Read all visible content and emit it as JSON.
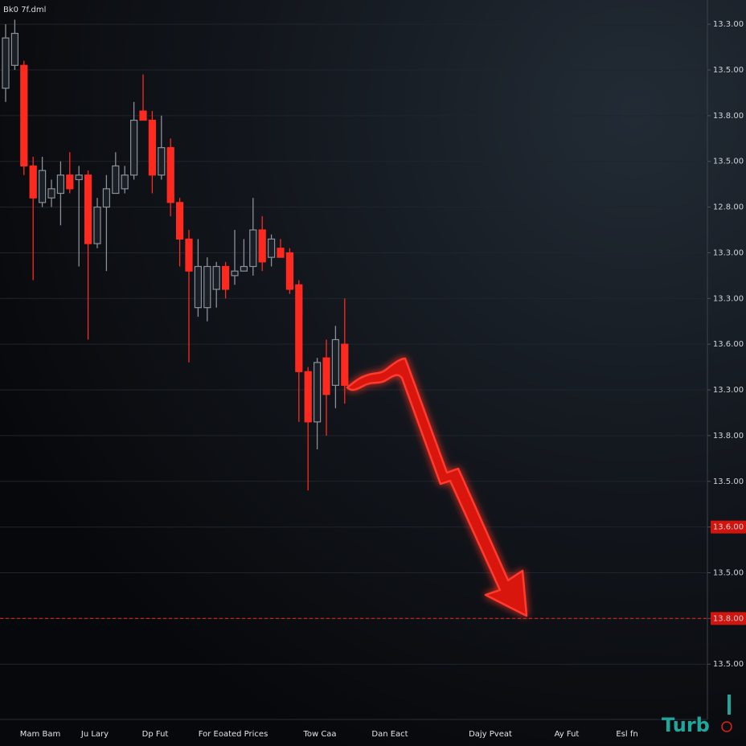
{
  "chart_data": {
    "type": "candlestick",
    "title": "Bk0 7f.dml",
    "logo": "Turb",
    "ylim": [
      -1.21,
      14.53
    ],
    "yticks": [
      {
        "value": 14,
        "label": "13.3.00"
      },
      {
        "value": 13,
        "label": "13.5.00"
      },
      {
        "value": 12,
        "label": "13.8.00"
      },
      {
        "value": 11,
        "label": "13.5.00"
      },
      {
        "value": 10,
        "label": "12.8.00"
      },
      {
        "value": 9,
        "label": "13.3.00"
      },
      {
        "value": 8,
        "label": "13.3.00"
      },
      {
        "value": 7,
        "label": "13.6.00"
      },
      {
        "value": 6,
        "label": "13.3.00"
      },
      {
        "value": 5,
        "label": "13.8.00"
      },
      {
        "value": 4,
        "label": "13.5.00"
      },
      {
        "value": 3,
        "label": "13.6.00"
      },
      {
        "value": 2,
        "label": "13.5.00"
      },
      {
        "value": 1,
        "label": "13.8.00"
      },
      {
        "value": 0,
        "label": "13.5.00"
      }
    ],
    "highlight_ticks": [
      3,
      1
    ],
    "hlines": [
      {
        "value": 1,
        "color": "#e0201c",
        "style": "dashed"
      }
    ],
    "grid": true,
    "up_color": "#8a9099",
    "down_color": "#ff2a1f",
    "x_labels": [
      "Mam Bam",
      "Ju Lary",
      "Dp Fut",
      "For Eoated Prices",
      "Tow Caa",
      "Dan Eact",
      "Dajy Pveat",
      "Ay Fut",
      "Esl fn"
    ],
    "candles": [
      {
        "open": 12.6,
        "high": 14.0,
        "low": 12.3,
        "close": 13.7
      },
      {
        "open": 13.1,
        "high": 14.1,
        "low": 13.0,
        "close": 13.8
      },
      {
        "open": 13.1,
        "high": 13.2,
        "low": 10.7,
        "close": 10.9
      },
      {
        "open": 10.9,
        "high": 11.1,
        "low": 8.4,
        "close": 10.2
      },
      {
        "open": 10.1,
        "high": 11.1,
        "low": 10.0,
        "close": 10.8
      },
      {
        "open": 10.2,
        "high": 10.6,
        "low": 10.0,
        "close": 10.4
      },
      {
        "open": 10.3,
        "high": 11.0,
        "low": 9.6,
        "close": 10.7
      },
      {
        "open": 10.7,
        "high": 11.2,
        "low": 10.3,
        "close": 10.4
      },
      {
        "open": 10.6,
        "high": 10.9,
        "low": 8.7,
        "close": 10.7
      },
      {
        "open": 10.7,
        "high": 10.8,
        "low": 7.1,
        "close": 9.2
      },
      {
        "open": 9.2,
        "high": 10.2,
        "low": 9.1,
        "close": 10.0
      },
      {
        "open": 10.0,
        "high": 10.7,
        "low": 8.6,
        "close": 10.4
      },
      {
        "open": 10.3,
        "high": 11.2,
        "low": 10.3,
        "close": 10.9
      },
      {
        "open": 10.4,
        "high": 10.9,
        "low": 10.3,
        "close": 10.7
      },
      {
        "open": 10.7,
        "high": 12.3,
        "low": 10.6,
        "close": 11.9
      },
      {
        "open": 12.1,
        "high": 12.9,
        "low": 11.9,
        "close": 11.9
      },
      {
        "open": 11.9,
        "high": 12.1,
        "low": 10.3,
        "close": 10.7
      },
      {
        "open": 10.7,
        "high": 12.0,
        "low": 10.6,
        "close": 11.3
      },
      {
        "open": 11.3,
        "high": 11.5,
        "low": 9.8,
        "close": 10.1
      },
      {
        "open": 10.1,
        "high": 10.2,
        "low": 8.7,
        "close": 9.3
      },
      {
        "open": 9.3,
        "high": 9.5,
        "low": 6.6,
        "close": 8.6
      },
      {
        "open": 7.8,
        "high": 9.3,
        "low": 7.6,
        "close": 8.7
      },
      {
        "open": 7.8,
        "high": 8.9,
        "low": 7.5,
        "close": 8.7
      },
      {
        "open": 8.2,
        "high": 8.8,
        "low": 7.8,
        "close": 8.7
      },
      {
        "open": 8.7,
        "high": 8.8,
        "low": 8.0,
        "close": 8.2
      },
      {
        "open": 8.5,
        "high": 9.5,
        "low": 8.3,
        "close": 8.6
      },
      {
        "open": 8.6,
        "high": 9.3,
        "low": 8.6,
        "close": 8.7
      },
      {
        "open": 8.7,
        "high": 10.2,
        "low": 8.5,
        "close": 9.5
      },
      {
        "open": 9.5,
        "high": 9.8,
        "low": 8.6,
        "close": 8.8
      },
      {
        "open": 8.9,
        "high": 9.4,
        "low": 8.7,
        "close": 9.3
      },
      {
        "open": 9.1,
        "high": 9.3,
        "low": 8.9,
        "close": 8.9
      },
      {
        "open": 9.0,
        "high": 9.1,
        "low": 8.1,
        "close": 8.2
      },
      {
        "open": 8.3,
        "high": 8.4,
        "low": 5.3,
        "close": 6.4
      },
      {
        "open": 6.4,
        "high": 6.5,
        "low": 3.8,
        "close": 5.3
      },
      {
        "open": 5.3,
        "high": 6.7,
        "low": 4.7,
        "close": 6.6
      },
      {
        "open": 6.7,
        "high": 7.1,
        "low": 5.0,
        "close": 5.9
      },
      {
        "open": 6.1,
        "high": 7.4,
        "low": 5.6,
        "close": 7.1
      },
      {
        "open": 7.0,
        "high": 8.0,
        "low": 5.7,
        "close": 6.1
      }
    ]
  }
}
